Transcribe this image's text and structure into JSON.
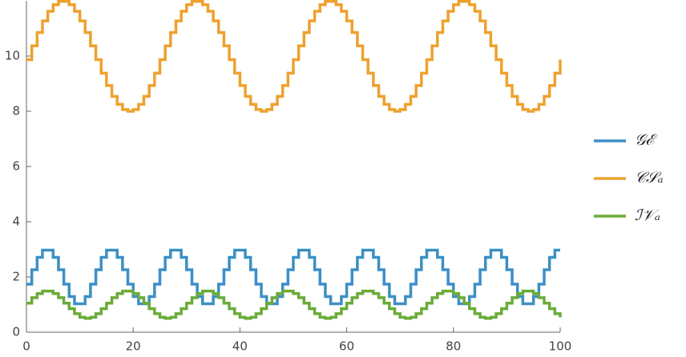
{
  "chart_data": {
    "type": "step",
    "x": [
      0,
      1,
      2,
      3,
      4,
      5,
      6,
      7,
      8,
      9,
      10,
      11,
      12,
      13,
      14,
      15,
      16,
      17,
      18,
      19,
      20,
      21,
      22,
      23,
      24,
      25,
      26,
      27,
      28,
      29,
      30,
      31,
      32,
      33,
      34,
      35,
      36,
      37,
      38,
      39,
      40,
      41,
      42,
      43,
      44,
      45,
      46,
      47,
      48,
      49,
      50,
      51,
      52,
      53,
      54,
      55,
      56,
      57,
      58,
      59,
      60,
      61,
      62,
      63,
      64,
      65,
      66,
      67,
      68,
      69,
      70,
      71,
      72,
      73,
      74,
      75,
      76,
      77,
      78,
      79,
      80,
      81,
      82,
      83,
      84,
      85,
      86,
      87,
      88,
      89,
      90,
      91,
      92,
      93,
      94,
      95,
      96,
      97,
      98,
      99,
      100
    ],
    "series": [
      {
        "name": "𝒢ℰ",
        "color": "#3d8fc6",
        "values": [
          1.74,
          2.26,
          2.71,
          2.97,
          2.97,
          2.71,
          2.26,
          1.74,
          1.29,
          1.03,
          1.03,
          1.29,
          1.74,
          2.26,
          2.71,
          2.97,
          2.97,
          2.71,
          2.26,
          1.74,
          1.29,
          1.03,
          1.03,
          1.29,
          1.74,
          2.26,
          2.71,
          2.97,
          2.97,
          2.71,
          2.26,
          1.74,
          1.29,
          1.03,
          1.03,
          1.29,
          1.74,
          2.26,
          2.71,
          2.97,
          2.97,
          2.71,
          2.26,
          1.74,
          1.29,
          1.03,
          1.03,
          1.29,
          1.74,
          2.26,
          2.71,
          2.97,
          2.97,
          2.71,
          2.26,
          1.74,
          1.29,
          1.03,
          1.03,
          1.29,
          1.74,
          2.26,
          2.71,
          2.97,
          2.97,
          2.71,
          2.26,
          1.74,
          1.29,
          1.03,
          1.03,
          1.29,
          1.74,
          2.26,
          2.71,
          2.97,
          2.97,
          2.71,
          2.26,
          1.74,
          1.29,
          1.03,
          1.03,
          1.29,
          1.74,
          2.26,
          2.71,
          2.97,
          2.97,
          2.71,
          2.26,
          1.74,
          1.29,
          1.03,
          1.03,
          1.29,
          1.74,
          2.26,
          2.71,
          2.97,
          2.97
        ]
      },
      {
        "name": "𝒞𝒮ₐ",
        "color": "#eea12e",
        "values": [
          9.87,
          10.37,
          10.85,
          11.27,
          11.62,
          11.86,
          11.98,
          11.98,
          11.86,
          11.62,
          11.27,
          10.85,
          10.37,
          9.87,
          9.38,
          8.93,
          8.54,
          8.25,
          8.06,
          8,
          8.06,
          8.25,
          8.54,
          8.93,
          9.38,
          9.87,
          10.37,
          10.85,
          11.27,
          11.62,
          11.86,
          11.98,
          11.98,
          11.86,
          11.62,
          11.27,
          10.85,
          10.37,
          9.87,
          9.38,
          8.93,
          8.54,
          8.25,
          8.06,
          8,
          8.06,
          8.25,
          8.54,
          8.93,
          9.38,
          9.87,
          10.37,
          10.85,
          11.27,
          11.62,
          11.86,
          11.98,
          11.98,
          11.86,
          11.62,
          11.27,
          10.85,
          10.37,
          9.87,
          9.38,
          8.93,
          8.54,
          8.25,
          8.06,
          8,
          8.06,
          8.25,
          8.54,
          8.93,
          9.38,
          9.87,
          10.37,
          10.85,
          11.27,
          11.62,
          11.86,
          11.98,
          11.98,
          11.86,
          11.62,
          11.27,
          10.85,
          10.37,
          9.87,
          9.38,
          8.93,
          8.54,
          8.25,
          8.06,
          8,
          8.06,
          8.25,
          8.54,
          8.93,
          9.38,
          9.87
        ]
      },
      {
        "name": "ℐ𝒱ₐ",
        "color": "#6aab39",
        "values": [
          1.05,
          1.25,
          1.4,
          1.49,
          1.49,
          1.4,
          1.25,
          1.05,
          0.85,
          0.67,
          0.54,
          0.5,
          0.54,
          0.67,
          0.85,
          1.05,
          1.25,
          1.4,
          1.49,
          1.49,
          1.4,
          1.25,
          1.05,
          0.85,
          0.67,
          0.54,
          0.5,
          0.54,
          0.67,
          0.85,
          1.05,
          1.25,
          1.4,
          1.49,
          1.49,
          1.4,
          1.25,
          1.05,
          0.85,
          0.67,
          0.54,
          0.5,
          0.54,
          0.67,
          0.85,
          1.05,
          1.25,
          1.4,
          1.49,
          1.49,
          1.4,
          1.25,
          1.05,
          0.85,
          0.67,
          0.54,
          0.5,
          0.54,
          0.67,
          0.85,
          1.05,
          1.25,
          1.4,
          1.49,
          1.49,
          1.4,
          1.25,
          1.05,
          0.85,
          0.67,
          0.54,
          0.5,
          0.54,
          0.67,
          0.85,
          1.05,
          1.25,
          1.4,
          1.49,
          1.49,
          1.4,
          1.25,
          1.05,
          0.85,
          0.67,
          0.54,
          0.5,
          0.54,
          0.67,
          0.85,
          1.05,
          1.25,
          1.4,
          1.49,
          1.49,
          1.4,
          1.25,
          1.05,
          0.85,
          0.67,
          0.54
        ]
      }
    ],
    "xlim": [
      0,
      100
    ],
    "xticks": [
      0,
      20,
      40,
      60,
      80,
      100
    ],
    "ylim": [
      0,
      12
    ],
    "yticks": [
      0,
      2,
      4,
      6,
      8,
      10
    ],
    "legend": "right"
  }
}
